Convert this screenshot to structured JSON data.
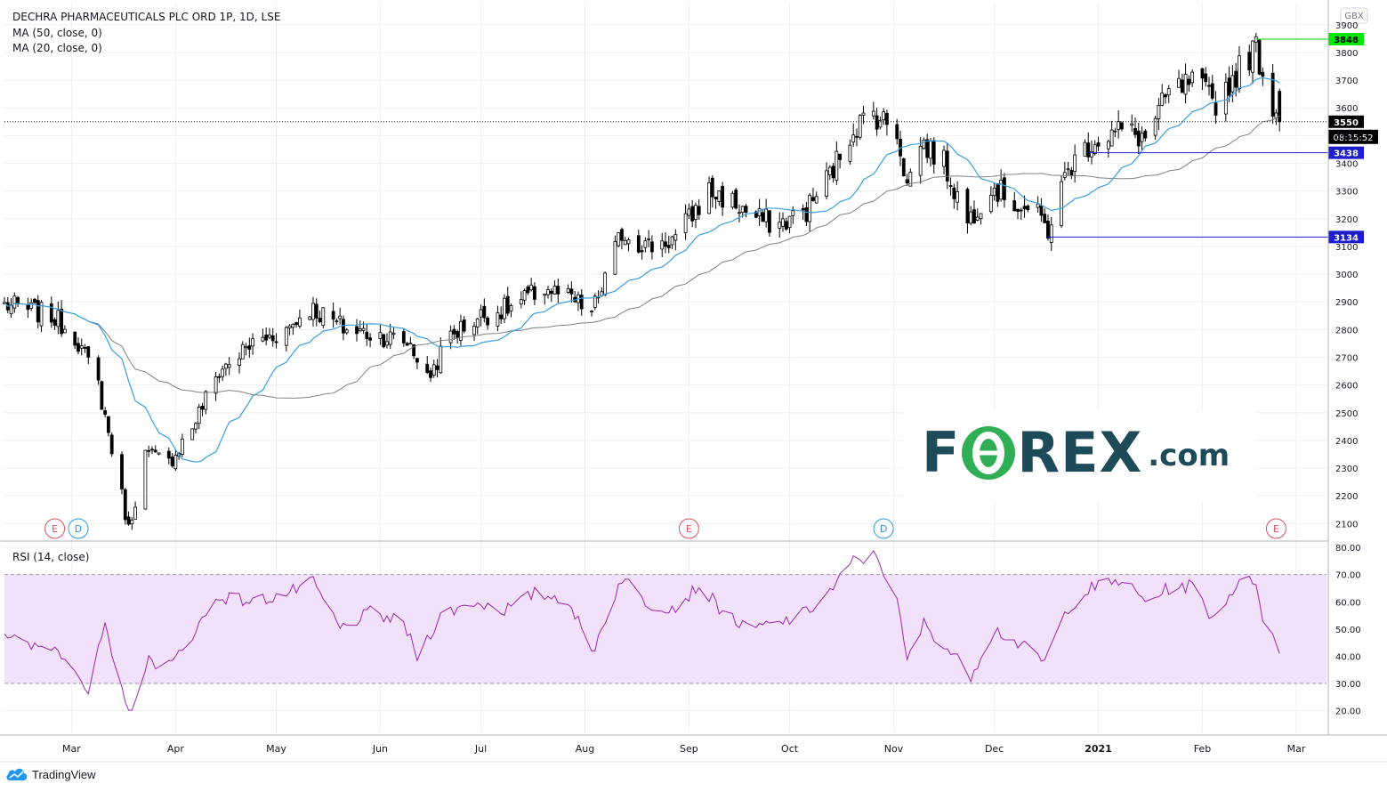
{
  "header": {
    "symbol_line": "DECHRA PHARMACEUTICALS PLC ORD 1P, 1D, LSE",
    "ma50_label": "MA (50, close, 0)",
    "ma20_label": "MA (20, close, 0)",
    "rsi_label": "RSI (14, close)"
  },
  "currency_badge": "GBX",
  "countdown": "08:15:52",
  "branding": {
    "tradingview": "TradingView",
    "watermark_left": "F",
    "watermark_right": "REX",
    "watermark_suffix": ".com",
    "watermark_o_glyph": "₡"
  },
  "colors": {
    "candle": "#000000",
    "ma20": "#3a9fe3",
    "ma50": "#808080",
    "rsi": "#9c27b0",
    "rsi_band": "#f1e1fa",
    "high_line": "#00cc00",
    "support_line": "#1d1dcc",
    "fx_text": "#1e4b5a",
    "fx_green": "#2fae56"
  },
  "event_markers": [
    {
      "letter": "E",
      "date": "2020-02-25",
      "color": "#e05060"
    },
    {
      "letter": "D",
      "date": "2020-03-03",
      "color": "#2e9be6"
    },
    {
      "letter": "E",
      "date": "2020-09-01",
      "color": "#e05060"
    },
    {
      "letter": "D",
      "date": "2020-10-29",
      "color": "#2e9be6"
    },
    {
      "letter": "E",
      "date": "2021-02-23",
      "color": "#e05060"
    }
  ],
  "chart_data": [
    {
      "type": "candlestick",
      "title": "DECHRA PHARMACEUTICALS PLC ORD 1P, 1D, LSE",
      "x_range": [
        "2020-02-10",
        "2021-03-10"
      ],
      "x_ticks": [
        {
          "label": "Mar",
          "date": "2020-03-01"
        },
        {
          "label": "Apr",
          "date": "2020-04-01"
        },
        {
          "label": "May",
          "date": "2020-05-01"
        },
        {
          "label": "Jun",
          "date": "2020-06-01"
        },
        {
          "label": "Jul",
          "date": "2020-07-01"
        },
        {
          "label": "Aug",
          "date": "2020-08-01"
        },
        {
          "label": "Sep",
          "date": "2020-09-01"
        },
        {
          "label": "Oct",
          "date": "2020-10-01"
        },
        {
          "label": "Nov",
          "date": "2020-11-01"
        },
        {
          "label": "Dec",
          "date": "2020-12-01"
        },
        {
          "label": "2021",
          "date": "2021-01-01"
        },
        {
          "label": "Feb",
          "date": "2021-02-01"
        },
        {
          "label": "Mar",
          "date": "2021-03-01"
        }
      ],
      "y_range": [
        2040,
        3925
      ],
      "y_ticks": [
        2100,
        2200,
        2300,
        2400,
        2500,
        2600,
        2700,
        2800,
        2900,
        3000,
        3100,
        3200,
        3300,
        3400,
        3500,
        3600,
        3700,
        3800,
        3900
      ],
      "price_anchors": [
        [
          "2020-02-10",
          2890
        ],
        [
          "2020-02-24",
          2850
        ],
        [
          "2020-03-02",
          2780
        ],
        [
          "2020-03-09",
          2600
        ],
        [
          "2020-03-16",
          2200
        ],
        [
          "2020-03-18",
          2080
        ],
        [
          "2020-03-23",
          2350
        ],
        [
          "2020-03-30",
          2320
        ],
        [
          "2020-04-06",
          2450
        ],
        [
          "2020-04-14",
          2650
        ],
        [
          "2020-04-24",
          2750
        ],
        [
          "2020-05-04",
          2800
        ],
        [
          "2020-05-11",
          2880
        ],
        [
          "2020-05-22",
          2800
        ],
        [
          "2020-06-01",
          2780
        ],
        [
          "2020-06-10",
          2750
        ],
        [
          "2020-06-15",
          2620
        ],
        [
          "2020-06-22",
          2780
        ],
        [
          "2020-07-01",
          2850
        ],
        [
          "2020-07-10",
          2880
        ],
        [
          "2020-07-20",
          2950
        ],
        [
          "2020-07-29",
          2900
        ],
        [
          "2020-08-03",
          2860
        ],
        [
          "2020-08-06",
          2950
        ],
        [
          "2020-08-12",
          3150
        ],
        [
          "2020-08-20",
          3100
        ],
        [
          "2020-08-28",
          3130
        ],
        [
          "2020-09-07",
          3300
        ],
        [
          "2020-09-14",
          3260
        ],
        [
          "2020-09-21",
          3200
        ],
        [
          "2020-09-28",
          3180
        ],
        [
          "2020-10-06",
          3230
        ],
        [
          "2020-10-14",
          3380
        ],
        [
          "2020-10-20",
          3530
        ],
        [
          "2020-10-26",
          3580
        ],
        [
          "2020-11-02",
          3520
        ],
        [
          "2020-11-05",
          3320
        ],
        [
          "2020-11-09",
          3480
        ],
        [
          "2020-11-16",
          3400
        ],
        [
          "2020-11-23",
          3190
        ],
        [
          "2020-11-30",
          3320
        ],
        [
          "2020-12-07",
          3260
        ],
        [
          "2020-12-14",
          3210
        ],
        [
          "2020-12-17",
          3160
        ],
        [
          "2020-12-23",
          3380
        ],
        [
          "2020-12-30",
          3480
        ],
        [
          "2021-01-08",
          3520
        ],
        [
          "2021-01-15",
          3490
        ],
        [
          "2021-01-22",
          3650
        ],
        [
          "2021-01-29",
          3690
        ],
        [
          "2021-02-05",
          3620
        ],
        [
          "2021-02-12",
          3740
        ],
        [
          "2021-02-17",
          3820
        ],
        [
          "2021-02-19",
          3720
        ],
        [
          "2021-02-22",
          3610
        ],
        [
          "2021-02-24",
          3550
        ]
      ],
      "key_levels": [
        {
          "label": "3848",
          "value": 3848,
          "from_date": "2021-02-17",
          "kind": "high"
        },
        {
          "label": "3550",
          "value": 3550,
          "kind": "last_price"
        },
        {
          "label": "3438",
          "value": 3438,
          "from_date": "2020-12-29",
          "kind": "support"
        },
        {
          "label": "3134",
          "value": 3134,
          "from_date": "2020-12-17",
          "kind": "support"
        }
      ],
      "series": [
        {
          "name": "MA (50, close, 0)",
          "window": 50
        },
        {
          "name": "MA (20, close, 0)",
          "window": 20
        }
      ],
      "grid": true,
      "legend": "top-left"
    },
    {
      "type": "line",
      "title": "RSI (14, close)",
      "y_range": [
        12,
        82
      ],
      "y_ticks": [
        20,
        30,
        40,
        50,
        60,
        70,
        80
      ],
      "band": [
        30,
        70
      ],
      "anchors": [
        [
          "2020-02-10",
          49
        ],
        [
          "2020-02-17",
          43
        ],
        [
          "2020-02-24",
          44
        ],
        [
          "2020-03-02",
          37
        ],
        [
          "2020-03-06",
          26
        ],
        [
          "2020-03-11",
          52
        ],
        [
          "2020-03-13",
          38
        ],
        [
          "2020-03-18",
          19
        ],
        [
          "2020-03-24",
          38
        ],
        [
          "2020-03-31",
          37
        ],
        [
          "2020-04-07",
          50
        ],
        [
          "2020-04-14",
          62
        ],
        [
          "2020-04-24",
          60
        ],
        [
          "2020-05-04",
          63
        ],
        [
          "2020-05-12",
          67
        ],
        [
          "2020-05-20",
          50
        ],
        [
          "2020-05-29",
          56
        ],
        [
          "2020-06-08",
          52
        ],
        [
          "2020-06-12",
          40
        ],
        [
          "2020-06-19",
          55
        ],
        [
          "2020-06-29",
          60
        ],
        [
          "2020-07-08",
          57
        ],
        [
          "2020-07-17",
          63
        ],
        [
          "2020-07-27",
          61
        ],
        [
          "2020-08-03",
          41
        ],
        [
          "2020-08-12",
          69
        ],
        [
          "2020-08-20",
          59
        ],
        [
          "2020-08-28",
          58
        ],
        [
          "2020-09-04",
          66
        ],
        [
          "2020-09-10",
          58
        ],
        [
          "2020-09-18",
          50
        ],
        [
          "2020-09-28",
          52
        ],
        [
          "2020-10-06",
          56
        ],
        [
          "2020-10-14",
          65
        ],
        [
          "2020-10-20",
          75
        ],
        [
          "2020-10-27",
          77
        ],
        [
          "2020-11-02",
          60
        ],
        [
          "2020-11-05",
          38
        ],
        [
          "2020-11-10",
          52
        ],
        [
          "2020-11-19",
          40
        ],
        [
          "2020-11-24",
          33
        ],
        [
          "2020-12-01",
          50
        ],
        [
          "2020-12-09",
          44
        ],
        [
          "2020-12-16",
          38
        ],
        [
          "2020-12-23",
          58
        ],
        [
          "2020-12-30",
          65
        ],
        [
          "2021-01-08",
          68
        ],
        [
          "2021-01-15",
          60
        ],
        [
          "2021-01-22",
          65
        ],
        [
          "2021-01-29",
          66
        ],
        [
          "2021-02-04",
          54
        ],
        [
          "2021-02-11",
          66
        ],
        [
          "2021-02-17",
          68
        ],
        [
          "2021-02-19",
          55
        ],
        [
          "2021-02-22",
          47
        ],
        [
          "2021-02-24",
          41
        ]
      ],
      "grid": true
    }
  ]
}
